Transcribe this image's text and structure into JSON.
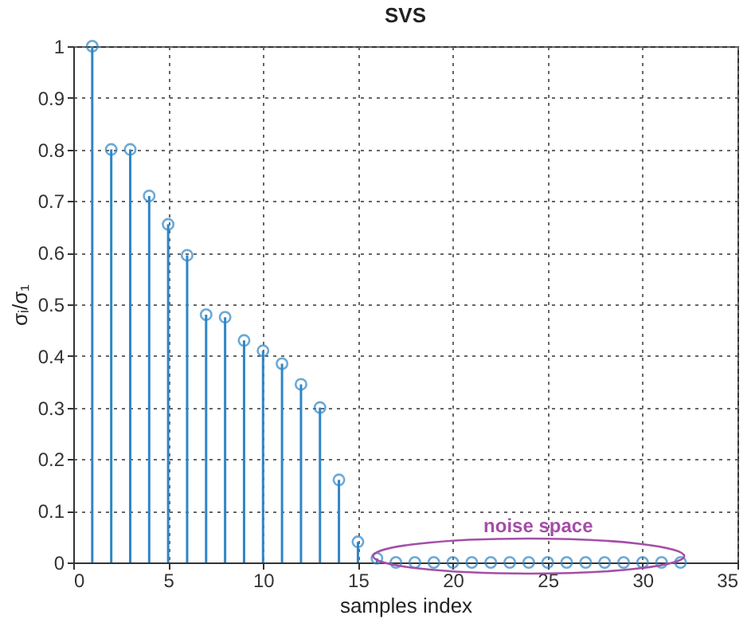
{
  "chart_data": {
    "type": "lollipop",
    "title": "SVS",
    "xlabel": "samples index",
    "ylabel": "σᵢ/σ₁",
    "x": [
      1,
      2,
      3,
      4,
      5,
      6,
      7,
      8,
      9,
      10,
      11,
      12,
      13,
      14,
      15,
      16,
      17,
      18,
      19,
      20,
      21,
      22,
      23,
      24,
      25,
      26,
      27,
      28,
      29,
      30,
      31,
      32
    ],
    "series": [
      {
        "color": "#2f86c6",
        "values": [
          1,
          0.8,
          0.8,
          0.71,
          0.655,
          0.595,
          0.48,
          0.475,
          0.43,
          0.41,
          0.385,
          0.345,
          0.3,
          0.16,
          0.04,
          0.008,
          0,
          0,
          0,
          0,
          0,
          0,
          0,
          0,
          0,
          0,
          0,
          0,
          0,
          0,
          0,
          0
        ]
      }
    ],
    "xlim": [
      0,
      35
    ],
    "xticks": [
      0,
      5,
      10,
      15,
      20,
      25,
      30,
      35
    ],
    "ylim": [
      0,
      1
    ],
    "yticks": [
      0,
      0.1,
      0.2,
      0.3,
      0.4,
      0.5,
      0.6,
      0.7,
      0.8,
      0.9,
      1
    ],
    "grid": true,
    "marker": "circle",
    "annotations": [
      "noise space"
    ],
    "legend": false
  }
}
